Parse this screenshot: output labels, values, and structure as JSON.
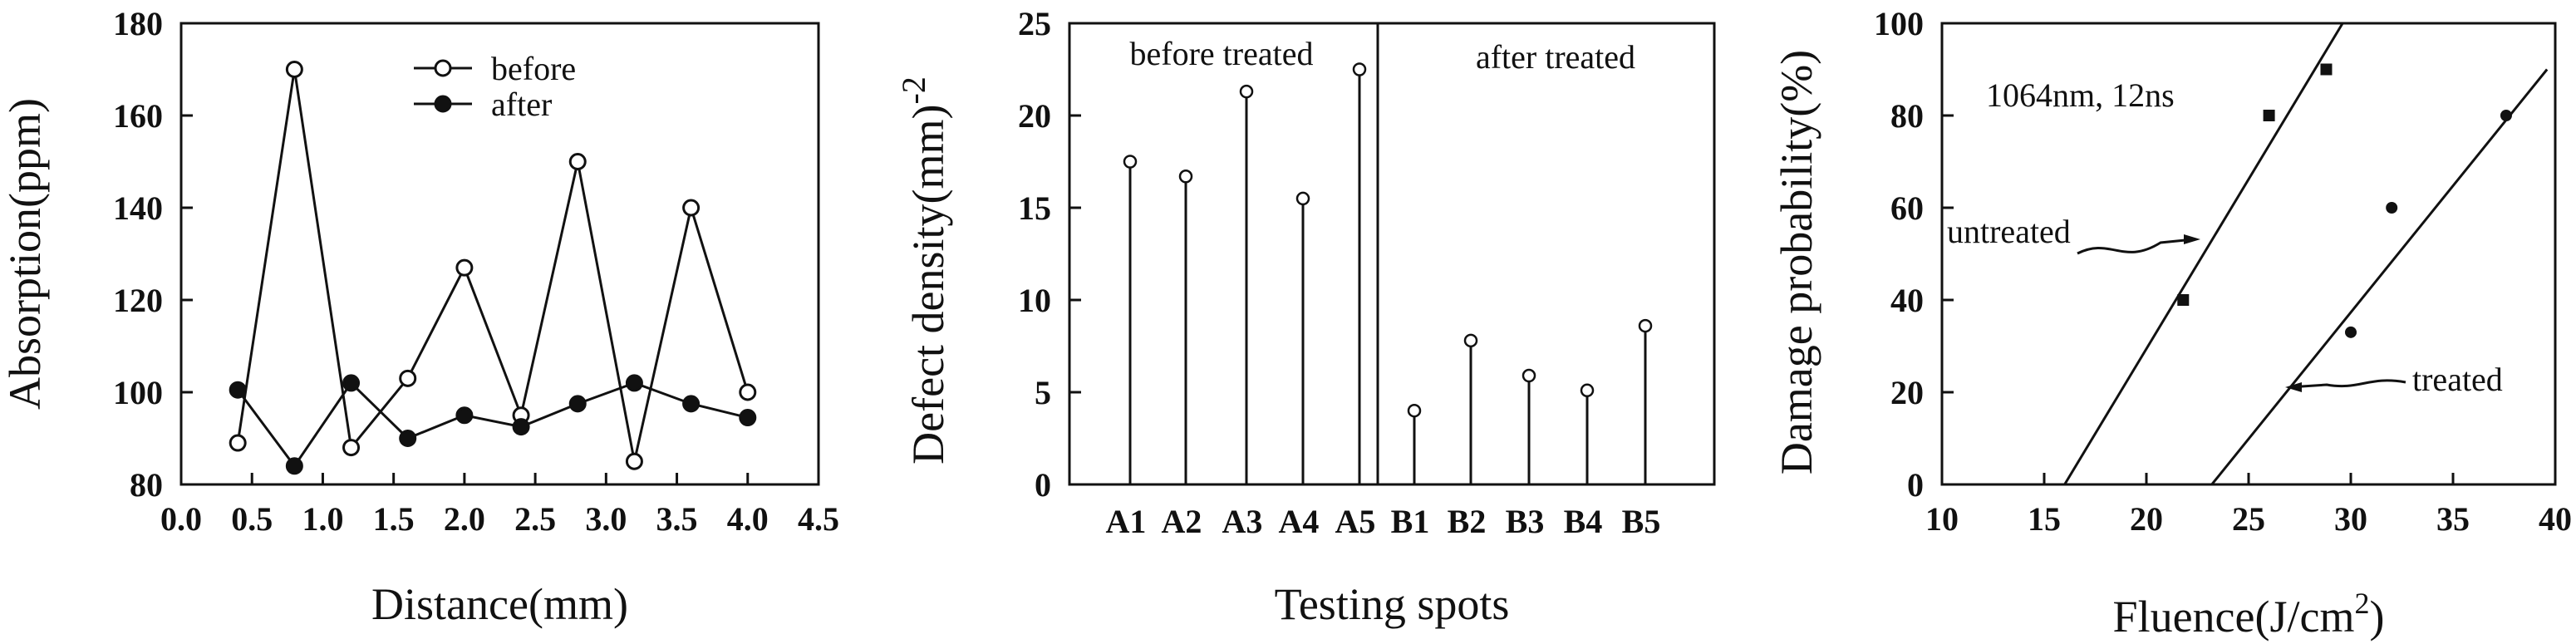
{
  "chart_data": [
    {
      "type": "line",
      "xlabel": "Distance(mm)",
      "ylabel": "Absorption(ppm)",
      "xlim": [
        0.0,
        4.5
      ],
      "ylim": [
        80,
        180
      ],
      "xticks": [
        "0.0",
        "0.5",
        "1.0",
        "1.5",
        "2.0",
        "2.5",
        "3.0",
        "3.5",
        "4.0",
        "4.5"
      ],
      "yticks": [
        "80",
        "100",
        "120",
        "140",
        "160",
        "180"
      ],
      "legend_position": "top-center",
      "series": [
        {
          "name": "before",
          "marker": "open-circle",
          "x": [
            0.4,
            0.8,
            1.2,
            1.6,
            2.0,
            2.4,
            2.8,
            3.2,
            3.6,
            4.0
          ],
          "y": [
            89,
            170,
            88,
            103,
            127,
            95,
            150,
            85,
            140,
            100
          ]
        },
        {
          "name": "after",
          "marker": "filled-circle",
          "x": [
            0.4,
            0.8,
            1.2,
            1.6,
            2.0,
            2.4,
            2.8,
            3.2,
            3.6,
            4.0
          ],
          "y": [
            100.5,
            84,
            102,
            90,
            95,
            92.5,
            97.5,
            102,
            97.5,
            94.5
          ]
        }
      ]
    },
    {
      "type": "stem",
      "xlabel": "Testing spots",
      "ylabel": "Defect density(mm)",
      "ylabel_exponent": "-2",
      "ylim": [
        0,
        25
      ],
      "yticks": [
        "0",
        "5",
        "10",
        "15",
        "20",
        "25"
      ],
      "categories": [
        "A1",
        "A2",
        "A3",
        "A4",
        "A5",
        "B1",
        "B2",
        "B3",
        "B4",
        "B5"
      ],
      "values": [
        17.5,
        16.7,
        21.3,
        15.5,
        22.5,
        4.0,
        7.8,
        5.9,
        5.1,
        8.6
      ],
      "regions": [
        "before treated",
        "after treated"
      ]
    },
    {
      "type": "scatter",
      "xlabel": "Fluence(J/cm",
      "xlabel_exponent": "2",
      "xlabel_suffix": ")",
      "ylabel": "Damage probability(%)",
      "xlim": [
        10,
        40
      ],
      "ylim": [
        0,
        100
      ],
      "xticks": [
        "10",
        "15",
        "20",
        "25",
        "30",
        "35",
        "40"
      ],
      "yticks": [
        "0",
        "20",
        "40",
        "60",
        "80",
        "100"
      ],
      "annotation": "1064nm, 12ns",
      "series": [
        {
          "name": "untreated",
          "marker": "filled-square",
          "points": [
            [
              21.8,
              40
            ],
            [
              26,
              80
            ],
            [
              28.8,
              90
            ]
          ],
          "fit_line": [
            [
              16,
              0
            ],
            [
              29.6,
              100
            ]
          ]
        },
        {
          "name": "treated",
          "marker": "filled-circle",
          "points": [
            [
              30,
              33
            ],
            [
              32,
              60
            ],
            [
              37.6,
              80
            ]
          ],
          "fit_line": [
            [
              23.2,
              0
            ],
            [
              39.6,
              90
            ]
          ]
        }
      ]
    }
  ]
}
